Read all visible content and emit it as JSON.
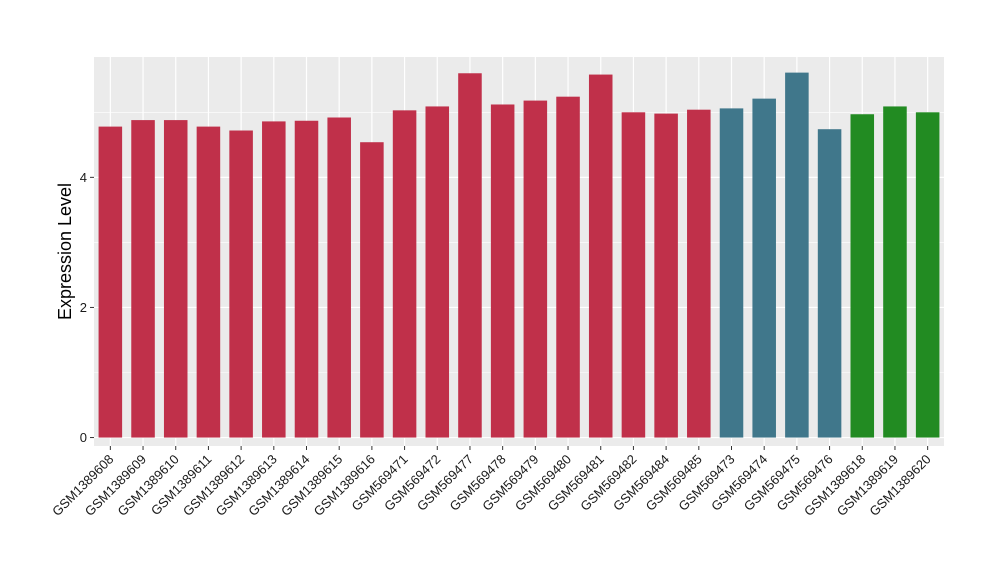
{
  "chart_data": {
    "type": "bar",
    "ylabel": "Expression Level",
    "xlabel": "",
    "ylim": [
      -0.13,
      5.85
    ],
    "yticks": [
      0,
      2,
      4
    ],
    "grid": true,
    "legend": "none",
    "background": "#ebebeb",
    "gridline_color": "#ffffff",
    "categories": [
      "GSM1389608",
      "GSM1389609",
      "GSM1389610",
      "GSM1389611",
      "GSM1389612",
      "GSM1389613",
      "GSM1389614",
      "GSM1389615",
      "GSM1389616",
      "GSM569471",
      "GSM569472",
      "GSM569477",
      "GSM569478",
      "GSM569479",
      "GSM569480",
      "GSM569481",
      "GSM569482",
      "GSM569484",
      "GSM569485",
      "GSM569473",
      "GSM569474",
      "GSM569475",
      "GSM569476",
      "GSM1389618",
      "GSM1389619",
      "GSM1389620"
    ],
    "values": [
      4.78,
      4.88,
      4.88,
      4.78,
      4.72,
      4.86,
      4.87,
      4.92,
      4.54,
      5.03,
      5.09,
      5.6,
      5.12,
      5.18,
      5.24,
      5.58,
      5.0,
      4.98,
      5.04,
      5.06,
      5.21,
      5.61,
      4.74,
      4.97,
      5.09,
      5.0
    ],
    "bar_colors": [
      "#c0304a",
      "#c0304a",
      "#c0304a",
      "#c0304a",
      "#c0304a",
      "#c0304a",
      "#c0304a",
      "#c0304a",
      "#c0304a",
      "#c0304a",
      "#c0304a",
      "#c0304a",
      "#c0304a",
      "#c0304a",
      "#c0304a",
      "#c0304a",
      "#c0304a",
      "#c0304a",
      "#c0304a",
      "#40778b",
      "#40778b",
      "#40778b",
      "#40778b",
      "#228b22",
      "#228b22",
      "#228b22"
    ]
  }
}
